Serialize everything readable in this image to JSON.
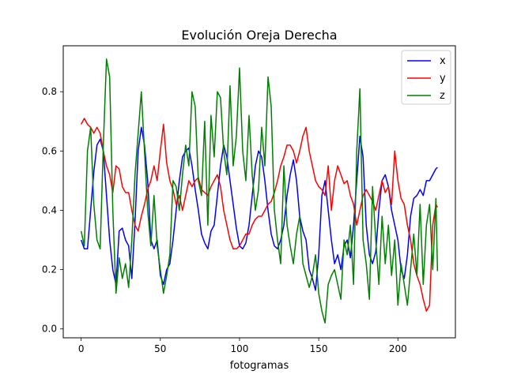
{
  "chart_data": {
    "type": "line",
    "title": "Evolución Oreja Derecha",
    "xlabel": "fotogramas",
    "ylabel": "",
    "xlim": [
      -11.3,
      236.3
    ],
    "ylim": [
      -0.03,
      0.955
    ],
    "x_ticks": [
      0,
      50,
      100,
      150,
      200
    ],
    "y_ticks": [
      0.0,
      0.2,
      0.4,
      0.6,
      0.8
    ],
    "x_tick_labels": [
      "0",
      "50",
      "100",
      "150",
      "200"
    ],
    "y_tick_labels": [
      "0.0",
      "0.2",
      "0.4",
      "0.6",
      "0.8"
    ],
    "grid": false,
    "legend_position": "top-right",
    "series": [
      {
        "name": "x",
        "color": "#0000ff",
        "x": [
          0,
          2,
          4,
          6,
          8,
          10,
          12,
          14,
          16,
          18,
          20,
          22,
          24,
          26,
          28,
          30,
          32,
          34,
          36,
          38,
          40,
          42,
          44,
          46,
          48,
          50,
          52,
          54,
          56,
          58,
          60,
          62,
          64,
          66,
          68,
          70,
          72,
          74,
          76,
          78,
          80,
          82,
          84,
          86,
          88,
          90,
          92,
          94,
          96,
          98,
          100,
          102,
          104,
          106,
          108,
          110,
          112,
          114,
          116,
          118,
          120,
          122,
          124,
          126,
          128,
          130,
          132,
          134,
          136,
          138,
          140,
          142,
          144,
          146,
          148,
          150,
          152,
          154,
          156,
          158,
          160,
          162,
          164,
          166,
          168,
          170,
          172,
          174,
          176,
          178,
          180,
          182,
          184,
          186,
          188,
          190,
          192,
          194,
          196,
          198,
          200,
          202,
          204,
          206,
          208,
          210,
          212,
          214,
          216,
          218,
          220,
          222,
          224,
          225
        ],
        "values": [
          0.3,
          0.27,
          0.27,
          0.4,
          0.53,
          0.62,
          0.64,
          0.6,
          0.45,
          0.3,
          0.2,
          0.15,
          0.33,
          0.34,
          0.3,
          0.28,
          0.17,
          0.36,
          0.6,
          0.68,
          0.62,
          0.5,
          0.3,
          0.27,
          0.3,
          0.18,
          0.15,
          0.2,
          0.22,
          0.3,
          0.4,
          0.5,
          0.58,
          0.6,
          0.61,
          0.55,
          0.47,
          0.4,
          0.32,
          0.29,
          0.27,
          0.33,
          0.35,
          0.45,
          0.55,
          0.62,
          0.58,
          0.5,
          0.42,
          0.34,
          0.28,
          0.27,
          0.29,
          0.35,
          0.45,
          0.55,
          0.6,
          0.58,
          0.5,
          0.4,
          0.32,
          0.28,
          0.27,
          0.3,
          0.35,
          0.45,
          0.52,
          0.57,
          0.5,
          0.38,
          0.33,
          0.3,
          0.2,
          0.17,
          0.13,
          0.25,
          0.45,
          0.5,
          0.4,
          0.3,
          0.22,
          0.25,
          0.2,
          0.28,
          0.3,
          0.24,
          0.35,
          0.5,
          0.65,
          0.58,
          0.35,
          0.25,
          0.22,
          0.26,
          0.4,
          0.5,
          0.52,
          0.48,
          0.4,
          0.35,
          0.3,
          0.2,
          0.17,
          0.25,
          0.38,
          0.44,
          0.45,
          0.47,
          0.45,
          0.5,
          0.5,
          0.52,
          0.54,
          0.545
        ]
      },
      {
        "name": "y",
        "color": "#ff0000",
        "x": [
          0,
          2,
          4,
          6,
          8,
          10,
          12,
          14,
          16,
          18,
          20,
          22,
          24,
          26,
          28,
          30,
          32,
          34,
          36,
          38,
          40,
          42,
          44,
          46,
          48,
          50,
          52,
          54,
          56,
          58,
          60,
          62,
          64,
          66,
          68,
          70,
          72,
          74,
          76,
          78,
          80,
          82,
          84,
          86,
          88,
          90,
          92,
          94,
          96,
          98,
          100,
          102,
          104,
          106,
          108,
          110,
          112,
          114,
          116,
          118,
          120,
          122,
          124,
          126,
          128,
          130,
          132,
          134,
          136,
          138,
          140,
          142,
          144,
          146,
          148,
          150,
          152,
          154,
          156,
          158,
          160,
          162,
          164,
          166,
          168,
          170,
          172,
          174,
          176,
          178,
          180,
          182,
          184,
          186,
          188,
          190,
          192,
          194,
          196,
          198,
          200,
          202,
          204,
          206,
          208,
          210,
          212,
          214,
          216,
          218,
          220,
          222,
          224,
          225
        ],
        "values": [
          0.69,
          0.71,
          0.69,
          0.68,
          0.66,
          0.68,
          0.66,
          0.6,
          0.55,
          0.52,
          0.46,
          0.55,
          0.54,
          0.48,
          0.46,
          0.46,
          0.4,
          0.35,
          0.33,
          0.38,
          0.42,
          0.47,
          0.5,
          0.55,
          0.5,
          0.6,
          0.69,
          0.56,
          0.5,
          0.47,
          0.42,
          0.45,
          0.4,
          0.45,
          0.5,
          0.48,
          0.5,
          0.51,
          0.47,
          0.46,
          0.45,
          0.48,
          0.5,
          0.52,
          0.48,
          0.4,
          0.35,
          0.3,
          0.27,
          0.27,
          0.28,
          0.3,
          0.32,
          0.32,
          0.35,
          0.37,
          0.38,
          0.38,
          0.4,
          0.42,
          0.43,
          0.46,
          0.5,
          0.55,
          0.58,
          0.62,
          0.62,
          0.6,
          0.56,
          0.6,
          0.65,
          0.68,
          0.6,
          0.55,
          0.5,
          0.48,
          0.47,
          0.45,
          0.55,
          0.4,
          0.5,
          0.55,
          0.52,
          0.49,
          0.5,
          0.45,
          0.42,
          0.35,
          0.4,
          0.45,
          0.47,
          0.45,
          0.43,
          0.4,
          0.45,
          0.5,
          0.46,
          0.48,
          0.42,
          0.6,
          0.5,
          0.44,
          0.42,
          0.35,
          0.3,
          0.22,
          0.18,
          0.15,
          0.1,
          0.06,
          0.08,
          0.35,
          0.42,
          0.41
        ]
      },
      {
        "name": "z",
        "color": "#008000",
        "x": [
          0,
          2,
          4,
          6,
          8,
          10,
          12,
          14,
          16,
          18,
          20,
          22,
          24,
          26,
          28,
          30,
          32,
          34,
          36,
          38,
          40,
          42,
          44,
          46,
          48,
          50,
          52,
          54,
          56,
          58,
          60,
          62,
          64,
          66,
          68,
          70,
          72,
          74,
          76,
          78,
          80,
          82,
          84,
          86,
          88,
          90,
          92,
          94,
          96,
          98,
          100,
          102,
          104,
          106,
          108,
          110,
          112,
          114,
          116,
          118,
          120,
          122,
          124,
          126,
          128,
          130,
          132,
          134,
          136,
          138,
          140,
          142,
          144,
          146,
          148,
          150,
          152,
          154,
          156,
          158,
          160,
          162,
          164,
          166,
          168,
          170,
          172,
          174,
          176,
          178,
          180,
          182,
          184,
          186,
          188,
          190,
          192,
          194,
          196,
          198,
          200,
          202,
          204,
          206,
          208,
          210,
          212,
          214,
          216,
          218,
          220,
          222,
          224,
          225
        ],
        "values": [
          0.33,
          0.28,
          0.6,
          0.68,
          0.42,
          0.3,
          0.27,
          0.62,
          0.91,
          0.85,
          0.4,
          0.12,
          0.24,
          0.17,
          0.22,
          0.14,
          0.3,
          0.52,
          0.66,
          0.8,
          0.6,
          0.4,
          0.28,
          0.45,
          0.28,
          0.2,
          0.12,
          0.18,
          0.25,
          0.5,
          0.48,
          0.4,
          0.52,
          0.62,
          0.55,
          0.8,
          0.75,
          0.5,
          0.45,
          0.7,
          0.35,
          0.72,
          0.58,
          0.8,
          0.78,
          0.6,
          0.52,
          0.82,
          0.55,
          0.65,
          0.88,
          0.6,
          0.5,
          0.72,
          0.52,
          0.4,
          0.47,
          0.68,
          0.55,
          0.85,
          0.75,
          0.4,
          0.3,
          0.22,
          0.55,
          0.35,
          0.28,
          0.22,
          0.32,
          0.38,
          0.22,
          0.18,
          0.14,
          0.18,
          0.25,
          0.12,
          0.06,
          0.02,
          0.15,
          0.18,
          0.2,
          0.15,
          0.1,
          0.3,
          0.25,
          0.35,
          0.15,
          0.6,
          0.81,
          0.3,
          0.22,
          0.1,
          0.48,
          0.3,
          0.15,
          0.38,
          0.22,
          0.35,
          0.18,
          0.3,
          0.08,
          0.22,
          0.15,
          0.08,
          0.2,
          0.32,
          0.18,
          0.42,
          0.15,
          0.35,
          0.42,
          0.2,
          0.44,
          0.195
        ]
      }
    ]
  }
}
